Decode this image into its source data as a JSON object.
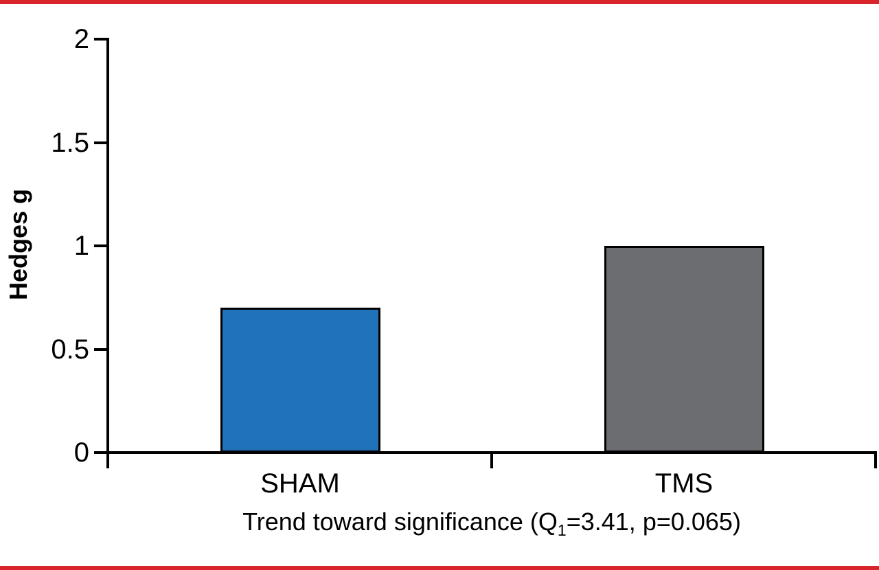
{
  "page": {
    "background": "#FFFFFF",
    "border_color": "#D8252B"
  },
  "chart_data": {
    "type": "bar",
    "categories": [
      "SHAM",
      "TMS"
    ],
    "values": [
      0.7,
      1.0
    ],
    "bar_colors": [
      "#2073B9",
      "#6C6D71"
    ],
    "bar_edge_color": "#000000",
    "axis_color": "#000000",
    "title": "",
    "ylabel": "Hedges g",
    "xlabel": "Trend toward significance (Q1=3.41, p=0.065)",
    "xlabel_parts": {
      "prefix": "Trend toward significance (Q",
      "subscript": "1",
      "suffix": "=3.41, p=0.065)"
    },
    "ylim": [
      0,
      2
    ],
    "yticks": [
      0,
      0.5,
      1,
      1.5,
      2
    ],
    "ytick_labels": [
      "0",
      "0.5",
      "1",
      "1.5",
      "2"
    ],
    "grid": false,
    "legend": null
  }
}
